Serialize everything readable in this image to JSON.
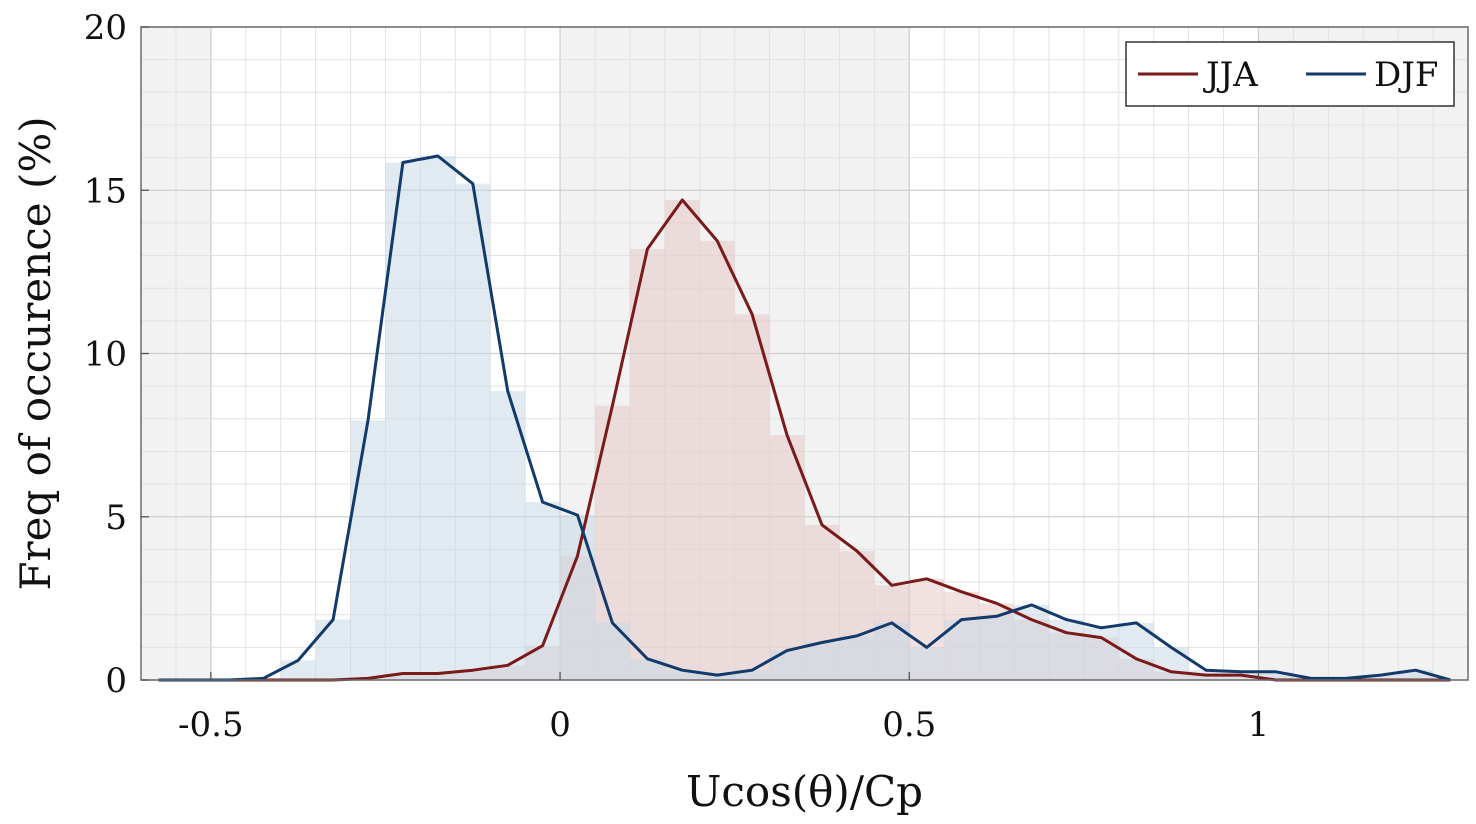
{
  "chart_data": {
    "type": "area",
    "xlabel": "Ucos(θ)/Cp",
    "ylabel": "Freq of occurence (%)",
    "xlim": [
      -0.6,
      1.3
    ],
    "ylim": [
      0,
      20
    ],
    "x_ticks": [
      -0.5,
      0,
      0.5,
      1
    ],
    "x_tick_labels": [
      "-0.5",
      "0",
      "0.5",
      "1"
    ],
    "y_ticks": [
      0,
      5,
      10,
      15,
      20
    ],
    "y_tick_labels": [
      "0",
      "5",
      "10",
      "15",
      "20"
    ],
    "grid": true,
    "legend_position": "top-right",
    "x": [
      -0.575,
      -0.525,
      -0.475,
      -0.425,
      -0.375,
      -0.325,
      -0.275,
      -0.225,
      -0.175,
      -0.125,
      -0.075,
      -0.025,
      0.025,
      0.075,
      0.125,
      0.175,
      0.225,
      0.275,
      0.325,
      0.375,
      0.425,
      0.475,
      0.525,
      0.575,
      0.625,
      0.675,
      0.725,
      0.775,
      0.825,
      0.875,
      0.925,
      0.975,
      1.025,
      1.075,
      1.125,
      1.175,
      1.225,
      1.275
    ],
    "series": [
      {
        "name": "JJA",
        "color": "#7a1a1a",
        "fill": "#e8c8c8",
        "values": [
          0,
          0,
          0,
          0,
          0,
          0,
          0.05,
          0.2,
          0.2,
          0.3,
          0.45,
          1.05,
          3.8,
          8.4,
          13.2,
          14.7,
          13.45,
          11.2,
          7.5,
          4.75,
          3.95,
          2.9,
          3.1,
          2.7,
          2.35,
          1.85,
          1.45,
          1.3,
          0.65,
          0.25,
          0.15,
          0.15,
          0,
          0,
          0,
          0,
          0,
          0
        ]
      },
      {
        "name": "DJF",
        "color": "#123a6b",
        "fill": "#c9d9e5",
        "values": [
          0,
          0,
          0,
          0.05,
          0.6,
          1.85,
          7.95,
          15.85,
          16.05,
          15.2,
          8.85,
          5.45,
          5.05,
          1.75,
          0.65,
          0.3,
          0.15,
          0.3,
          0.9,
          1.15,
          1.35,
          1.75,
          1.0,
          1.85,
          1.95,
          2.3,
          1.85,
          1.6,
          1.75,
          1.0,
          0.3,
          0.25,
          0.25,
          0.05,
          0.05,
          0.15,
          0.3,
          0
        ]
      }
    ]
  }
}
